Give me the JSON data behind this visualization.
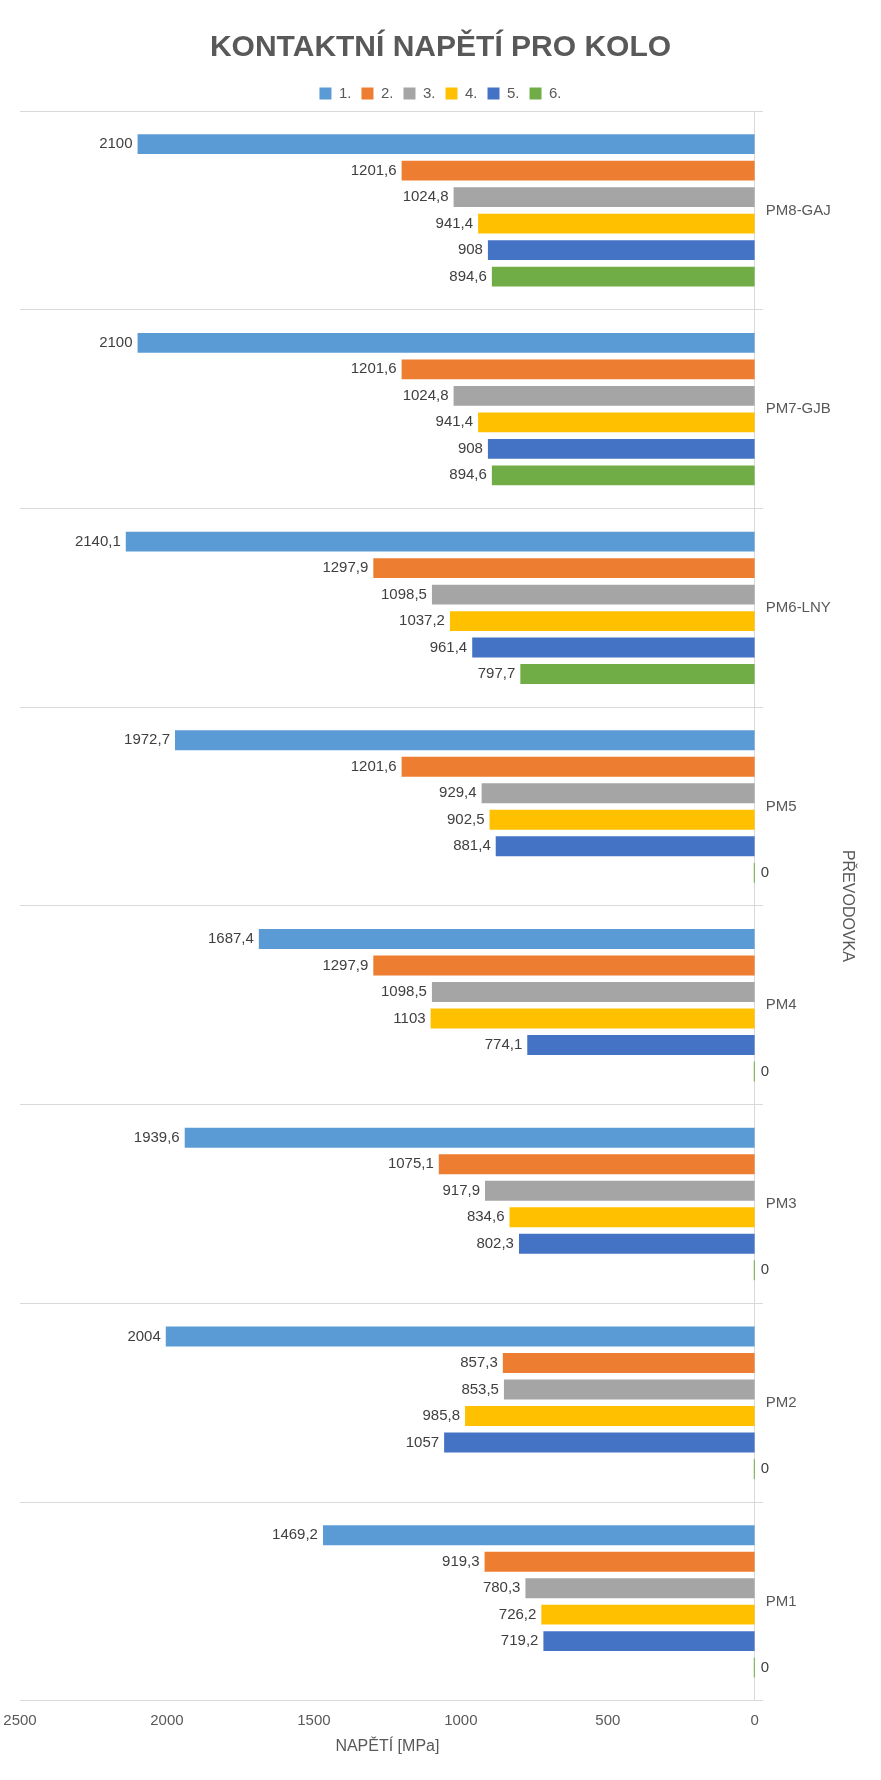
{
  "chart_data": {
    "type": "bar",
    "orientation": "horizontal",
    "title": "KONTAKTNÍ NAPĚTÍ PRO KOLO",
    "xlabel": "NAPĚTÍ [MPa]",
    "ylabel": "PŘEVODOVKA",
    "categories": [
      "PM8-GAJ",
      "PM7-GJB",
      "PM6-LNY",
      "PM5",
      "PM4",
      "PM3",
      "PM2",
      "PM1"
    ],
    "series": [
      {
        "name": "1.",
        "color": "#5b9bd5",
        "values": [
          2100,
          2100,
          2140.1,
          1972.7,
          1687.4,
          1939.6,
          2004,
          1469.2
        ],
        "value_labels": [
          "2100",
          "2100",
          "2140,1",
          "1972,7",
          "1687,4",
          "1939,6",
          "2004",
          "1469,2"
        ]
      },
      {
        "name": "2.",
        "color": "#ed7d31",
        "values": [
          1201.6,
          1201.6,
          1297.9,
          1201.6,
          1297.9,
          1075.1,
          857.3,
          919.3
        ],
        "value_labels": [
          "1201,6",
          "1201,6",
          "1297,9",
          "1201,6",
          "1297,9",
          "1075,1",
          "857,3",
          "919,3"
        ]
      },
      {
        "name": "3.",
        "color": "#a5a5a5",
        "values": [
          1024.8,
          1024.8,
          1098.5,
          929.4,
          1098.5,
          917.9,
          853.5,
          780.3
        ],
        "value_labels": [
          "1024,8",
          "1024,8",
          "1098,5",
          "929,4",
          "1098,5",
          "917,9",
          "853,5",
          "780,3"
        ]
      },
      {
        "name": "4.",
        "color": "#ffc000",
        "values": [
          941.4,
          941.4,
          1037.2,
          902.5,
          1103,
          834.6,
          985.8,
          726.2
        ],
        "value_labels": [
          "941,4",
          "941,4",
          "1037,2",
          "902,5",
          "1103",
          "834,6",
          "985,8",
          "726,2"
        ]
      },
      {
        "name": "5.",
        "color": "#4472c4",
        "values": [
          908,
          908,
          961.4,
          881.4,
          774.1,
          802.3,
          1057,
          719.2
        ],
        "value_labels": [
          "908",
          "908",
          "961,4",
          "881,4",
          "774,1",
          "802,3",
          "1057",
          "719,2"
        ]
      },
      {
        "name": "6.",
        "color": "#70ad47",
        "values": [
          894.6,
          894.6,
          797.7,
          0,
          0,
          0,
          0,
          0
        ],
        "value_labels": [
          "894,6",
          "894,6",
          "797,7",
          "0",
          "0",
          "0",
          "0",
          "0"
        ]
      }
    ],
    "xlim": [
      2500,
      0
    ],
    "xticks": [
      2500,
      2000,
      1500,
      1000,
      500,
      0
    ],
    "grid": "y",
    "legend": "top"
  }
}
